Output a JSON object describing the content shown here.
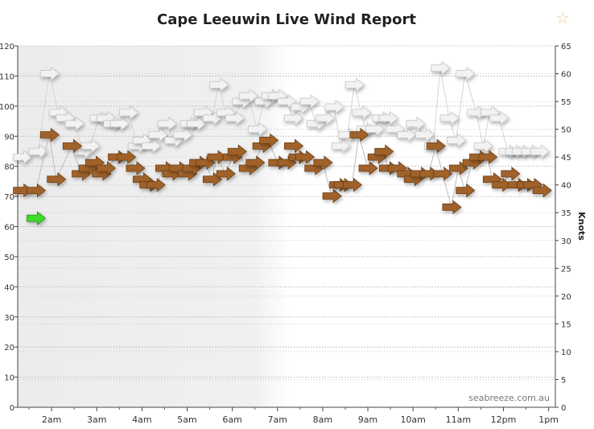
{
  "chart": {
    "title": "Cape Leeuwin Live Wind Report",
    "favorite_icon": "star-outline-icon",
    "watermark": "seabreeze.com.au"
  },
  "chart_data": {
    "type": "scatter",
    "title": "Cape Leeuwin Live Wind Report",
    "ylabel_right": "Knots",
    "y_left_range": [
      0,
      120
    ],
    "y_left_ticks": [
      0,
      10,
      20,
      30,
      40,
      50,
      60,
      70,
      80,
      90,
      100,
      110,
      120
    ],
    "y_right_range": [
      0,
      65
    ],
    "y_right_ticks": [
      0,
      5,
      10,
      15,
      20,
      25,
      30,
      35,
      40,
      45,
      50,
      55,
      60,
      65
    ],
    "x_range_hours": [
      1.25,
      13.15
    ],
    "x_ticks": [
      "2am",
      "3am",
      "4am",
      "5am",
      "6am",
      "7am",
      "8am",
      "9am",
      "10am",
      "11am",
      "12pm",
      "1pm"
    ],
    "grid": true,
    "colors": {
      "wind": "#a0622a",
      "wind_border": "#6b3f16",
      "gust": "#f2f2f2",
      "gust_border": "#c8c8c8",
      "current": "#3ddc2a",
      "current_border": "#2a8a1f",
      "shade": "#ededed"
    },
    "current": {
      "time": 1.65,
      "speed": 34
    },
    "series": [
      {
        "time": [
          1.35,
          1.65,
          1.95,
          2.1,
          2.45,
          2.65,
          2.8,
          2.95,
          3.1,
          3.2,
          3.45,
          3.65,
          3.85,
          4.0,
          4.15,
          4.3,
          4.5,
          4.65,
          4.8,
          5.0,
          5.1,
          5.25,
          5.4,
          5.55,
          5.65,
          5.85,
          6.0,
          6.1,
          6.35,
          6.5,
          6.65,
          6.8,
          7.0,
          7.2,
          7.35,
          7.45,
          7.6,
          7.8,
          8.0,
          8.2,
          8.35,
          8.45,
          8.65,
          8.8,
          9.0,
          9.2,
          9.35,
          9.45,
          9.65,
          9.85,
          10.0,
          10.15,
          10.35,
          10.5,
          10.65,
          10.85,
          11.0,
          11.15,
          11.3,
          11.45,
          11.65,
          11.75,
          11.95,
          12.15,
          12.3,
          12.5,
          12.65,
          12.85
        ],
        "speed": [
          39,
          39,
          49,
          41,
          47,
          42,
          43,
          44,
          42,
          43,
          45,
          45,
          43,
          41,
          40,
          40,
          43,
          42,
          43,
          42,
          43,
          44,
          44,
          41,
          45,
          42,
          45,
          46,
          43,
          44,
          47,
          48,
          44,
          44,
          47,
          45,
          45,
          43,
          44,
          38,
          40,
          40,
          40,
          49,
          43,
          45,
          46,
          43,
          43,
          42,
          41,
          42,
          42,
          47,
          42,
          36,
          43,
          39,
          44,
          45,
          45,
          41,
          40,
          42,
          40,
          40,
          40,
          39
        ]
      },
      {
        "time": [
          1.35,
          1.7,
          1.95,
          2.15,
          2.3,
          2.5,
          2.7,
          2.85,
          3.05,
          3.2,
          3.35,
          3.5,
          3.7,
          3.9,
          4.0,
          4.2,
          4.35,
          4.55,
          4.7,
          4.9,
          5.05,
          5.2,
          5.35,
          5.55,
          5.7,
          5.85,
          6.05,
          6.2,
          6.35,
          6.55,
          6.7,
          6.85,
          7.0,
          7.2,
          7.35,
          7.5,
          7.7,
          7.85,
          8.05,
          8.25,
          8.4,
          8.55,
          8.7,
          8.85,
          8.95,
          9.15,
          9.3,
          9.45,
          9.6,
          9.85,
          10.05,
          10.25,
          10.45,
          10.6,
          10.8,
          10.95,
          11.15,
          11.4,
          11.55,
          11.7,
          11.9,
          12.1,
          12.25,
          12.4,
          12.6,
          12.8
        ],
        "speed": [
          45,
          46,
          60,
          53,
          52,
          51,
          46,
          47,
          52,
          52,
          51,
          51,
          53,
          47,
          48,
          47,
          49,
          51,
          48,
          49,
          51,
          51,
          53,
          52,
          58,
          53,
          52,
          55,
          56,
          50,
          55,
          56,
          56,
          55,
          52,
          54,
          55,
          51,
          52,
          54,
          47,
          49,
          58,
          53,
          50,
          50,
          52,
          52,
          50,
          49,
          51,
          49,
          47,
          61,
          52,
          48,
          60,
          53,
          47,
          53,
          52,
          46,
          46,
          46,
          46,
          46
        ]
      }
    ]
  }
}
